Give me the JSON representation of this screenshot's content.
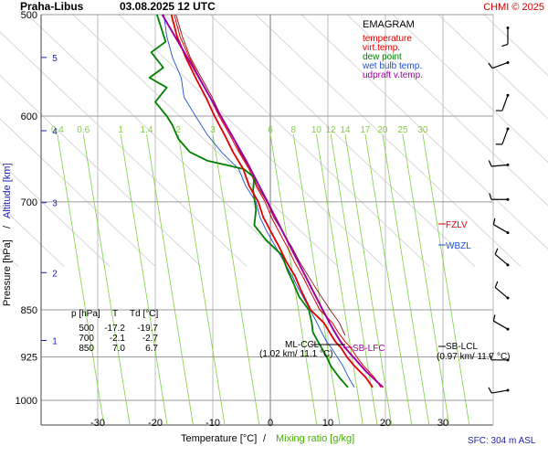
{
  "header": {
    "station": "Praha-Libus",
    "datetime": "03.08.2025 12 UTC",
    "copyright": "CHMI © 2025"
  },
  "legend": {
    "title": "EMAGRAM",
    "entries": [
      {
        "label": "temperature",
        "color": "#e00000"
      },
      {
        "label": "virt.temp.",
        "color": "#e00000"
      },
      {
        "label": "dew point",
        "color": "#008000"
      },
      {
        "label": "wet bulb temp.",
        "color": "#1e50d0"
      },
      {
        "label": "udpraft v.temp.",
        "color": "#a000a0"
      }
    ]
  },
  "table": {
    "headers": [
      "p [hPa]",
      "T",
      "Td [°C]"
    ],
    "rows": [
      [
        "500",
        "-17.2",
        "-19.7"
      ],
      [
        "700",
        "-2.1",
        "-2.7"
      ],
      [
        "850",
        "7.0",
        "6.7"
      ]
    ]
  },
  "annotations": {
    "fzlv": "FZLV",
    "wbzl": "WBZL",
    "ml_ccl": "ML-CCL",
    "ml_ccl_detail": "(1.02 km/ 11.1 °C)",
    "sb_lfc": "SB-LFC",
    "sb_lcl": "SB-LCL",
    "sb_lcl_detail": "(0.97 km/ 11.7 °C)"
  },
  "footer": {
    "sfc": "SFC: 304 m ASL"
  },
  "axes": {
    "xlabel_temp": "Temperature [°C]",
    "xlabel_sep": "/",
    "xlabel_mix": "Mixing ratio [g/kg]",
    "ylabel_pres": "Pressure [hPa]",
    "ylabel_sep": "/",
    "ylabel_alt": "Altitude [km]"
  },
  "colors": {
    "temperature": "#e00000",
    "dewpoint": "#008000",
    "wetbulb": "#1e50d0",
    "updraft": "#a000a0",
    "mixing": "#80d040",
    "grid": "#888888",
    "dark_red": "#7a0000",
    "axis_km": "#2020b0"
  },
  "chart_data": {
    "type": "line",
    "y_scale": "log",
    "xlim": [
      -40,
      35
    ],
    "ylim": [
      1000,
      500
    ],
    "x_ticks": [
      -30,
      -20,
      -10,
      0,
      10,
      20,
      30
    ],
    "x_tick_labels": [
      "-30",
      "-20",
      "-10",
      "0",
      "10",
      "20",
      "30"
    ],
    "p_ticks": [
      500,
      600,
      700,
      850,
      925,
      1000
    ],
    "p_tick_labels": [
      "500",
      "600",
      "700",
      "850",
      "925",
      "1000"
    ],
    "alt_ticks_km": [
      1,
      2,
      3,
      4,
      5
    ],
    "alt_tick_labels": [
      "1",
      "2",
      "3",
      "4",
      "5"
    ],
    "alt_tick_pressures": [
      898,
      795,
      701,
      616,
      540
    ],
    "mixing_labels": [
      "0.4",
      "0.6",
      "1",
      "1.4",
      "2",
      "3",
      "6",
      "8",
      "10",
      "12",
      "14",
      "17",
      "20",
      "25",
      "30"
    ],
    "mixing_label_temps": [
      -37.0,
      -32.5,
      -26.0,
      -21.5,
      -16.0,
      -10.0,
      0.0,
      4.0,
      8.0,
      10.5,
      13.0,
      16.5,
      19.5,
      23.0,
      26.5
    ],
    "mixing_label_pressure": 620,
    "series": [
      {
        "name": "temperature",
        "points": [
          [
            977,
            17.8
          ],
          [
            960,
            16.6
          ],
          [
            940,
            14.6
          ],
          [
            925,
            13.3
          ],
          [
            910,
            12.3
          ],
          [
            900,
            11.3
          ],
          [
            885,
            10.3
          ],
          [
            870,
            9.3
          ],
          [
            850,
            7.0
          ],
          [
            820,
            5.3
          ],
          [
            800,
            4.3
          ],
          [
            780,
            2.8
          ],
          [
            760,
            1.6
          ],
          [
            740,
            0.2
          ],
          [
            720,
            -1.2
          ],
          [
            700,
            -2.1
          ],
          [
            680,
            -3.7
          ],
          [
            660,
            -4.7
          ],
          [
            640,
            -6.5
          ],
          [
            620,
            -8.0
          ],
          [
            600,
            -9.7
          ],
          [
            580,
            -11.2
          ],
          [
            560,
            -13.0
          ],
          [
            540,
            -14.7
          ],
          [
            520,
            -16.2
          ],
          [
            500,
            -17.2
          ]
        ]
      },
      {
        "name": "virt.temp.",
        "points": [
          [
            977,
            19.2
          ],
          [
            960,
            18.1
          ],
          [
            940,
            16.2
          ],
          [
            925,
            15.0
          ],
          [
            910,
            14.0
          ],
          [
            900,
            13.0
          ],
          [
            885,
            11.8
          ],
          [
            870,
            10.8
          ],
          [
            850,
            8.6
          ],
          [
            820,
            6.8
          ],
          [
            800,
            5.6
          ],
          [
            780,
            4.2
          ],
          [
            760,
            3.0
          ],
          [
            740,
            1.6
          ],
          [
            720,
            0.2
          ],
          [
            700,
            -0.9
          ],
          [
            680,
            -2.5
          ],
          [
            660,
            -3.7
          ],
          [
            640,
            -5.5
          ],
          [
            620,
            -7.1
          ],
          [
            600,
            -8.9
          ],
          [
            580,
            -10.5
          ],
          [
            560,
            -12.3
          ],
          [
            540,
            -14.1
          ],
          [
            520,
            -15.7
          ],
          [
            500,
            -16.7
          ]
        ]
      },
      {
        "name": "dew point",
        "points": [
          [
            977,
            13.5
          ],
          [
            960,
            12.0
          ],
          [
            940,
            10.5
          ],
          [
            925,
            9.8
          ],
          [
            910,
            8.9
          ],
          [
            900,
            8.3
          ],
          [
            885,
            7.4
          ],
          [
            870,
            7.2
          ],
          [
            850,
            6.7
          ],
          [
            830,
            5.0
          ],
          [
            810,
            4.0
          ],
          [
            790,
            2.9
          ],
          [
            770,
            2.0
          ],
          [
            750,
            -0.7
          ],
          [
            730,
            -2.8
          ],
          [
            710,
            -2.5
          ],
          [
            700,
            -2.7
          ],
          [
            685,
            -3.0
          ],
          [
            670,
            -2.8
          ],
          [
            660,
            -4.6
          ],
          [
            650,
            -11.0
          ],
          [
            640,
            -14.0
          ],
          [
            625,
            -16.0
          ],
          [
            610,
            -17.0
          ],
          [
            600,
            -18.0
          ],
          [
            585,
            -20.0
          ],
          [
            570,
            -18.0
          ],
          [
            560,
            -21.0
          ],
          [
            550,
            -18.6
          ],
          [
            535,
            -20.7
          ],
          [
            525,
            -18.2
          ],
          [
            515,
            -18.8
          ],
          [
            500,
            -19.7
          ]
        ]
      },
      {
        "name": "wet bulb temp.",
        "points": [
          [
            977,
            14.6
          ],
          [
            960,
            13.6
          ],
          [
            940,
            12.6
          ],
          [
            925,
            11.6
          ],
          [
            910,
            10.6
          ],
          [
            900,
            9.8
          ],
          [
            885,
            8.9
          ],
          [
            870,
            8.1
          ],
          [
            850,
            6.9
          ],
          [
            820,
            5.0
          ],
          [
            800,
            3.8
          ],
          [
            780,
            2.4
          ],
          [
            760,
            1.0
          ],
          [
            740,
            -0.5
          ],
          [
            720,
            -1.8
          ],
          [
            700,
            -2.5
          ],
          [
            680,
            -4.3
          ],
          [
            660,
            -5.5
          ],
          [
            640,
            -8.5
          ],
          [
            620,
            -11.0
          ],
          [
            600,
            -13.0
          ],
          [
            580,
            -15.0
          ],
          [
            560,
            -15.5
          ],
          [
            540,
            -17.0
          ],
          [
            520,
            -18.0
          ],
          [
            500,
            -18.5
          ]
        ]
      },
      {
        "name": "udpraft v.temp.",
        "points": [
          [
            977,
            19.6
          ],
          [
            950,
            16.7
          ],
          [
            925,
            14.4
          ],
          [
            910,
            13.0
          ],
          [
            897,
            12.0
          ],
          [
            880,
            10.9
          ],
          [
            850,
            9.1
          ],
          [
            800,
            6.1
          ],
          [
            750,
            2.9
          ],
          [
            700,
            -0.5
          ],
          [
            650,
            -4.2
          ],
          [
            600,
            -8.6
          ],
          [
            550,
            -13.4
          ],
          [
            500,
            -18.8
          ]
        ]
      },
      {
        "name": "dark parcel",
        "points": [
          [
            890,
            13.0
          ],
          [
            870,
            12.0
          ],
          [
            850,
            10.4
          ],
          [
            820,
            8.1
          ],
          [
            800,
            6.6
          ],
          [
            780,
            5.1
          ],
          [
            760,
            3.8
          ],
          [
            740,
            2.2
          ],
          [
            720,
            0.6
          ],
          [
            700,
            -0.6
          ],
          [
            680,
            -2.3
          ],
          [
            660,
            -3.5
          ],
          [
            640,
            -5.3
          ],
          [
            620,
            -6.8
          ],
          [
            600,
            -8.6
          ],
          [
            580,
            -10.1
          ],
          [
            560,
            -12.0
          ],
          [
            540,
            -13.9
          ],
          [
            520,
            -15.3
          ],
          [
            500,
            -16.4
          ]
        ]
      }
    ],
    "wind_barbs": [
      {
        "p": 512,
        "dir": 180,
        "speed": 10
      },
      {
        "p": 545,
        "dir": 250,
        "speed": 10
      },
      {
        "p": 578,
        "dir": 200,
        "speed": 10
      },
      {
        "p": 614,
        "dir": 200,
        "speed": 10
      },
      {
        "p": 655,
        "dir": 265,
        "speed": 10
      },
      {
        "p": 697,
        "dir": 270,
        "speed": 10
      },
      {
        "p": 740,
        "dir": 300,
        "speed": 10
      },
      {
        "p": 784,
        "dir": 310,
        "speed": 10
      },
      {
        "p": 832,
        "dir": 310,
        "speed": 10
      },
      {
        "p": 880,
        "dir": 300,
        "speed": 10
      },
      {
        "p": 930,
        "dir": 270,
        "speed": 10
      },
      {
        "p": 982,
        "dir": 260,
        "speed": 10
      }
    ]
  }
}
